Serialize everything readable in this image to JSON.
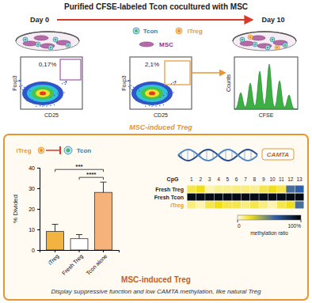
{
  "header": {
    "title": "Purified CFSE-labeled Tcon cocultured with MSC",
    "day_start": "Day 0",
    "day_end": "Day 10"
  },
  "cells": {
    "tcon": "Tcon",
    "itreg": "iTreg",
    "msc": "MSC"
  },
  "flow": [
    {
      "x_label": "CD25",
      "y_label": "Foxp3",
      "gate": "0,17%"
    },
    {
      "x_label": "CD25",
      "y_label": "Foxp3",
      "gate": "2,1%"
    }
  ],
  "histogram": {
    "x_label": "CFSE",
    "y_label": "Counts"
  },
  "induced_label": "MSC-induced Treg",
  "inhibition": {
    "source": "iTreg",
    "target": "Tcon"
  },
  "dna_label": "CAMTA",
  "chart_data": [
    {
      "type": "bar",
      "y_label": "% Divided",
      "categories": [
        "iTreg",
        "Fresh Treg",
        "Tcon alone"
      ],
      "values": [
        9,
        5.5,
        28
      ],
      "errors": [
        3.5,
        2,
        5
      ],
      "colors": [
        "#f3b340",
        "#ffffff",
        "#f5b27a"
      ],
      "ylim": [
        0,
        40
      ],
      "yticks": [
        0,
        10,
        20,
        30,
        40
      ],
      "annotations": [
        {
          "between": [
            "iTreg",
            "Tcon alone"
          ],
          "text": "***"
        },
        {
          "between": [
            "Fresh Treg",
            "Tcon alone"
          ],
          "text": "****"
        }
      ]
    },
    {
      "type": "heatmap",
      "x_label": "CpG",
      "x": [
        1,
        2,
        3,
        4,
        5,
        6,
        7,
        8,
        9,
        10,
        11,
        12,
        13
      ],
      "rows": [
        "Fresh Treg",
        "Fresh Tcon",
        "iTreg"
      ],
      "cells": [
        [
          15,
          20,
          5,
          8,
          8,
          10,
          10,
          8,
          15,
          20,
          15,
          55,
          60
        ],
        [
          95,
          95,
          95,
          95,
          95,
          95,
          95,
          95,
          95,
          95,
          95,
          95,
          95
        ],
        [
          10,
          5,
          15,
          20,
          15,
          15,
          10,
          15,
          10,
          5,
          15,
          20,
          55
        ]
      ],
      "colorbar": {
        "label": "methylation ratio",
        "range": [
          0,
          100
        ],
        "ticks": [
          0,
          {
            "value": 100,
            "label": "100%"
          }
        ]
      }
    }
  ],
  "footer": {
    "title": "MSC-induced Treg",
    "text": "Display suppressive function and low CAMTA methylation, like natural Treg"
  }
}
